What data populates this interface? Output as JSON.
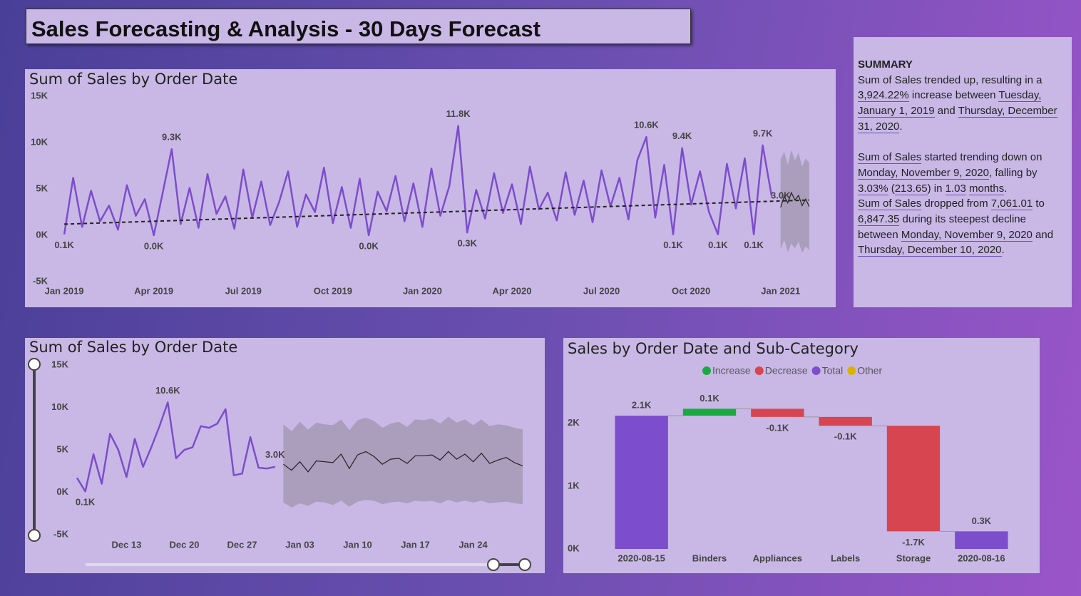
{
  "header": {
    "title": "Sales Forecasting & Analysis - 30 Days Forecast"
  },
  "summary": {
    "heading": "SUMMARY",
    "paragraphs": [
      [
        {
          "text": "Sum of Sales trended up, resulting in a "
        },
        {
          "text": "3,924.22%",
          "link": true
        },
        {
          "text": " increase between "
        },
        {
          "text": "Tuesday, January 1, 2019",
          "link": true
        },
        {
          "text": " and "
        },
        {
          "text": "Thursday, December 31, 2020",
          "link": true
        },
        {
          "text": "."
        }
      ],
      [
        {
          "text": "Sum of Sales",
          "link": true
        },
        {
          "text": " started trending down on "
        },
        {
          "text": "Monday, November 9, 2020",
          "link": true
        },
        {
          "text": ", falling by "
        },
        {
          "text": "3.03%",
          "link": true
        },
        {
          "text": " ("
        },
        {
          "text": "213.65",
          "link": true
        },
        {
          "text": ") in "
        },
        {
          "text": "1.03",
          "link": true
        },
        {
          "text": " "
        },
        {
          "text": "months",
          "link": true
        },
        {
          "text": "."
        }
      ],
      [
        {
          "text": "Sum of Sales",
          "link": true
        },
        {
          "text": " dropped from "
        },
        {
          "text": "7,061.01",
          "link": true
        },
        {
          "text": " to "
        },
        {
          "text": "6,847.35",
          "link": true
        },
        {
          "text": " during its steepest decline between "
        },
        {
          "text": "Monday, November 9, 2020",
          "link": true
        },
        {
          "text": " and "
        },
        {
          "text": "Thursday, December 10, 2020",
          "link": true
        },
        {
          "text": "."
        }
      ]
    ]
  },
  "chart_data": [
    {
      "type": "line",
      "title": "Sum of Sales by Order Date",
      "color": "#7c4dcc",
      "grid": false,
      "x": [
        2019,
        2019.025,
        2019.05,
        2019.075,
        2019.1,
        2019.125,
        2019.15,
        2019.175,
        2019.2,
        2019.225,
        2019.25,
        2019.275,
        2019.3,
        2019.325,
        2019.35,
        2019.375,
        2019.4,
        2019.425,
        2019.45,
        2019.475,
        2019.5,
        2019.525,
        2019.55,
        2019.575,
        2019.6,
        2019.625,
        2019.65,
        2019.675,
        2019.7,
        2019.725,
        2019.75,
        2019.775,
        2019.8,
        2019.825,
        2019.85,
        2019.875,
        2019.9,
        2019.925,
        2019.95,
        2019.975,
        2020,
        2020.025,
        2020.05,
        2020.075,
        2020.1,
        2020.125,
        2020.15,
        2020.175,
        2020.2,
        2020.225,
        2020.25,
        2020.275,
        2020.3,
        2020.325,
        2020.35,
        2020.375,
        2020.4,
        2020.425,
        2020.45,
        2020.475,
        2020.5,
        2020.525,
        2020.55,
        2020.575,
        2020.6,
        2020.625,
        2020.65,
        2020.675,
        2020.7,
        2020.725,
        2020.75,
        2020.775,
        2020.8,
        2020.825,
        2020.85,
        2020.875,
        2020.9,
        2020.925,
        2020.95,
        2020.975
      ],
      "values": [
        100,
        6200,
        900,
        4800,
        1500,
        3200,
        600,
        5400,
        2100,
        3900,
        0,
        4600,
        9300,
        1200,
        5100,
        800,
        6600,
        2300,
        4200,
        700,
        7100,
        1900,
        5800,
        1100,
        3600,
        6900,
        900,
        4400,
        2500,
        7300,
        1300,
        5200,
        800,
        6100,
        0,
        4700,
        2600,
        6400,
        1500,
        5600,
        900,
        7200,
        2100,
        5300,
        11800,
        300,
        4900,
        1800,
        6700,
        2400,
        5500,
        1200,
        7400,
        2800,
        4600,
        1600,
        6800,
        2200,
        5900,
        1400,
        7000,
        3100,
        6200,
        1700,
        8100,
        10600,
        1900,
        7600,
        100,
        9400,
        3300,
        6900,
        2500,
        100,
        7700,
        2900,
        8300,
        100,
        9700,
        4200
      ],
      "value_labels": [
        "0.1K",
        null,
        null,
        null,
        null,
        null,
        null,
        null,
        null,
        null,
        "0.0K",
        null,
        "9.3K",
        null,
        null,
        null,
        null,
        null,
        null,
        null,
        null,
        null,
        null,
        null,
        null,
        null,
        null,
        null,
        null,
        null,
        null,
        null,
        null,
        null,
        "0.0K",
        null,
        null,
        null,
        null,
        null,
        null,
        null,
        null,
        null,
        "11.8K",
        "0.3K",
        null,
        null,
        null,
        null,
        null,
        null,
        null,
        null,
        null,
        null,
        null,
        null,
        null,
        null,
        null,
        null,
        null,
        null,
        null,
        "10.6K",
        null,
        null,
        "0.1K",
        "9.4K",
        null,
        null,
        null,
        "0.1K",
        null,
        null,
        null,
        "0.1K",
        "9.7K",
        null
      ],
      "trend": {
        "x": [
          2019,
          2021.08
        ],
        "values": [
          1200,
          3800
        ],
        "color": "#222222"
      },
      "forecast": {
        "x": [
          2021,
          2021.01,
          2021.02,
          2021.03,
          2021.04,
          2021.05,
          2021.06,
          2021.07,
          2021.08
        ],
        "values": [
          3000,
          4200,
          3500,
          4600,
          3800,
          4300,
          3200,
          3900,
          3100
        ],
        "lower": [
          -1500,
          -500,
          -1800,
          -900,
          -1400,
          -700,
          -1900,
          -1200,
          -1600
        ],
        "upper": [
          8200,
          9000,
          7600,
          9200,
          8100,
          8900,
          7400,
          8300,
          7800
        ],
        "value_labels": [
          "3.0K",
          null,
          null,
          null,
          null,
          null,
          null,
          null,
          null
        ],
        "color": "#222222",
        "band_color": "#a698b4"
      },
      "xlim": [
        2018.97,
        2021.11
      ],
      "xticks": [
        {
          "value": 2019,
          "label": "Jan 2019"
        },
        {
          "value": 2019.25,
          "label": "Apr 2019"
        },
        {
          "value": 2019.5,
          "label": "Jul 2019"
        },
        {
          "value": 2019.75,
          "label": "Oct 2019"
        },
        {
          "value": 2020,
          "label": "Jan 2020"
        },
        {
          "value": 2020.25,
          "label": "Apr 2020"
        },
        {
          "value": 2020.5,
          "label": "Jul 2020"
        },
        {
          "value": 2020.75,
          "label": "Oct 2020"
        },
        {
          "value": 2021,
          "label": "Jan 2021"
        }
      ],
      "ylim": [
        -5000,
        15000
      ],
      "yticks": [
        {
          "value": -5000,
          "label": "-5K"
        },
        {
          "value": 0,
          "label": "0K"
        },
        {
          "value": 5000,
          "label": "5K"
        },
        {
          "value": 10000,
          "label": "10K"
        },
        {
          "value": 15000,
          "label": "15K"
        }
      ]
    },
    {
      "type": "line",
      "title": "Sum of Sales by Order Date",
      "color": "#7c4dcc",
      "grid": false,
      "categories": [
        null,
        null,
        null,
        null,
        null,
        null,
        "Dec 13",
        null,
        null,
        null,
        null,
        null,
        null,
        "Dec 20",
        null,
        null,
        null,
        null,
        null,
        null,
        "Dec 27",
        null,
        null,
        null,
        null,
        null,
        null,
        "Jan 03",
        null,
        null,
        null,
        null,
        null,
        null,
        "Jan 10",
        null,
        null,
        null,
        null,
        null,
        null,
        "Jan 17",
        null,
        null,
        null,
        null,
        null,
        null,
        "Jan 24",
        null,
        null,
        null,
        null,
        null,
        null
      ],
      "values": [
        1700,
        100,
        4500,
        1000,
        6900,
        5000,
        1800,
        6300,
        3000,
        5300,
        7800,
        10600,
        4000,
        5000,
        5300,
        7800,
        7600,
        8100,
        9800,
        2000,
        2200,
        6500,
        2900,
        2800,
        3000,
        null,
        null,
        null,
        null,
        null,
        null,
        null,
        null,
        null,
        null,
        null,
        null,
        null,
        null,
        null,
        null,
        null,
        null,
        null,
        null,
        null,
        null,
        null,
        null,
        null,
        null,
        null,
        null,
        null,
        null
      ],
      "value_labels": [
        null,
        "0.1K",
        null,
        null,
        null,
        null,
        null,
        null,
        null,
        null,
        null,
        "10.6K",
        null,
        null,
        null,
        null,
        null,
        null,
        null,
        null,
        null,
        null,
        null,
        null,
        "3.0K",
        null,
        null,
        null,
        null,
        null,
        null,
        null,
        null,
        null,
        null,
        null,
        null,
        null,
        null,
        null,
        null,
        null,
        null,
        null,
        null,
        null,
        null,
        null,
        null,
        null,
        null,
        null,
        null,
        null,
        null
      ],
      "forecast": {
        "values": [
          null,
          null,
          null,
          null,
          null,
          null,
          null,
          null,
          null,
          null,
          null,
          null,
          null,
          null,
          null,
          null,
          null,
          null,
          null,
          null,
          null,
          null,
          null,
          null,
          null,
          3300,
          2600,
          3600,
          2400,
          3700,
          3600,
          3500,
          4500,
          2800,
          4400,
          4800,
          4200,
          3300,
          3900,
          4000,
          3400,
          4300,
          4300,
          4400,
          3800,
          4800,
          3900,
          4500,
          3600,
          4600,
          3400,
          3800,
          4100,
          3500,
          3100
        ],
        "lower": [
          null,
          null,
          null,
          null,
          null,
          null,
          null,
          null,
          null,
          null,
          null,
          null,
          null,
          null,
          null,
          null,
          null,
          null,
          null,
          null,
          null,
          null,
          null,
          null,
          null,
          -1200,
          -1800,
          -1300,
          -1600,
          -1100,
          -1200,
          -1500,
          -1000,
          -1700,
          -1100,
          -900,
          -1000,
          -1400,
          -1200,
          -1100,
          -1300,
          -1000,
          -1100,
          -1000,
          -1300,
          -900,
          -1200,
          -1000,
          -1200,
          -1000,
          -1300,
          -1200,
          -1100,
          -1300,
          -1400
        ],
        "upper": [
          null,
          null,
          null,
          null,
          null,
          null,
          null,
          null,
          null,
          null,
          null,
          null,
          null,
          null,
          null,
          null,
          null,
          null,
          null,
          null,
          null,
          null,
          null,
          null,
          null,
          8000,
          7200,
          8300,
          7400,
          8200,
          8000,
          7900,
          8600,
          7300,
          8500,
          8800,
          8400,
          7600,
          8100,
          8300,
          7700,
          8600,
          8500,
          8700,
          8100,
          8900,
          8200,
          8600,
          7900,
          8600,
          7800,
          8000,
          7900,
          7600,
          7400
        ],
        "color": "#222222",
        "band_color": "#a698b4"
      },
      "ylim": [
        -5000,
        15000
      ],
      "yticks": [
        {
          "value": -5000,
          "label": "-5K"
        },
        {
          "value": 0,
          "label": "0K"
        },
        {
          "value": 5000,
          "label": "5K"
        },
        {
          "value": 10000,
          "label": "10K"
        },
        {
          "value": 15000,
          "label": "15K"
        }
      ]
    },
    {
      "type": "waterfall",
      "title": "Sales by Order Date and Sub-Category",
      "categories": [
        "2020-08-15",
        "Binders",
        "Appliances",
        "Labels",
        "Storage",
        "2020-08-16"
      ],
      "values": [
        2120,
        110,
        -130,
        -140,
        -1680,
        280
      ],
      "value_labels": [
        "2.1K",
        "0.1K",
        "-0.1K",
        "-0.1K",
        "-1.7K",
        "0.3K"
      ],
      "kinds": [
        "Total",
        "Increase",
        "Decrease",
        "Decrease",
        "Decrease",
        "Total"
      ],
      "legend": [
        {
          "name": "Increase",
          "color": "#1aab40"
        },
        {
          "name": "Decrease",
          "color": "#d64550"
        },
        {
          "name": "Total",
          "color": "#7c4dcc"
        },
        {
          "name": "Other",
          "color": "#d9b300"
        }
      ],
      "ylim": [
        0,
        3000
      ],
      "yticks": [
        {
          "value": 0,
          "label": "0K"
        },
        {
          "value": 1000,
          "label": "1K"
        },
        {
          "value": 2000,
          "label": "2K"
        }
      ]
    }
  ]
}
